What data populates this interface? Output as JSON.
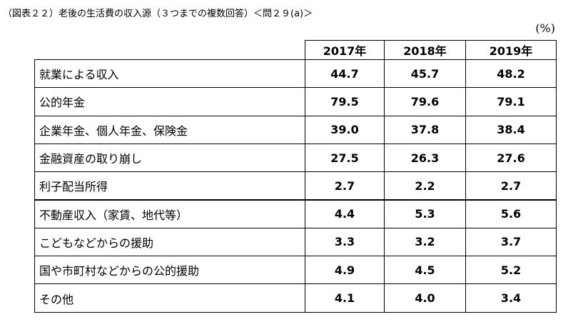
{
  "title": "（図表２２）老後の生活費の収入源（３つまでの複数回答）＜問２９(a)＞",
  "unit": "(%)",
  "table": {
    "headers": [
      "2017年",
      "2018年",
      "2019年"
    ],
    "rows": [
      [
        "就業による収入",
        "44.7",
        "45.7",
        "48.2"
      ],
      [
        "公的年金",
        "79.5",
        "79.6",
        "79.1"
      ],
      [
        "企業年金、個人年金、保険金",
        "39.0",
        "37.8",
        "38.4"
      ],
      [
        "金融資産の取り崩し",
        "27.5",
        "26.3",
        "27.6"
      ],
      [
        "利子配当所得",
        "2.7",
        "2.2",
        "2.7"
      ],
      [
        "不動産収入（家賃、地代等）",
        "4.4",
        "5.3",
        "5.6"
      ],
      [
        "こどもなどからの援助",
        "3.3",
        "3.2",
        "3.7"
      ],
      [
        "国や市町村などからの公的援助",
        "4.9",
        "4.5",
        "5.2"
      ],
      [
        "その他",
        "4.1",
        "4.0",
        "3.4"
      ]
    ]
  }
}
